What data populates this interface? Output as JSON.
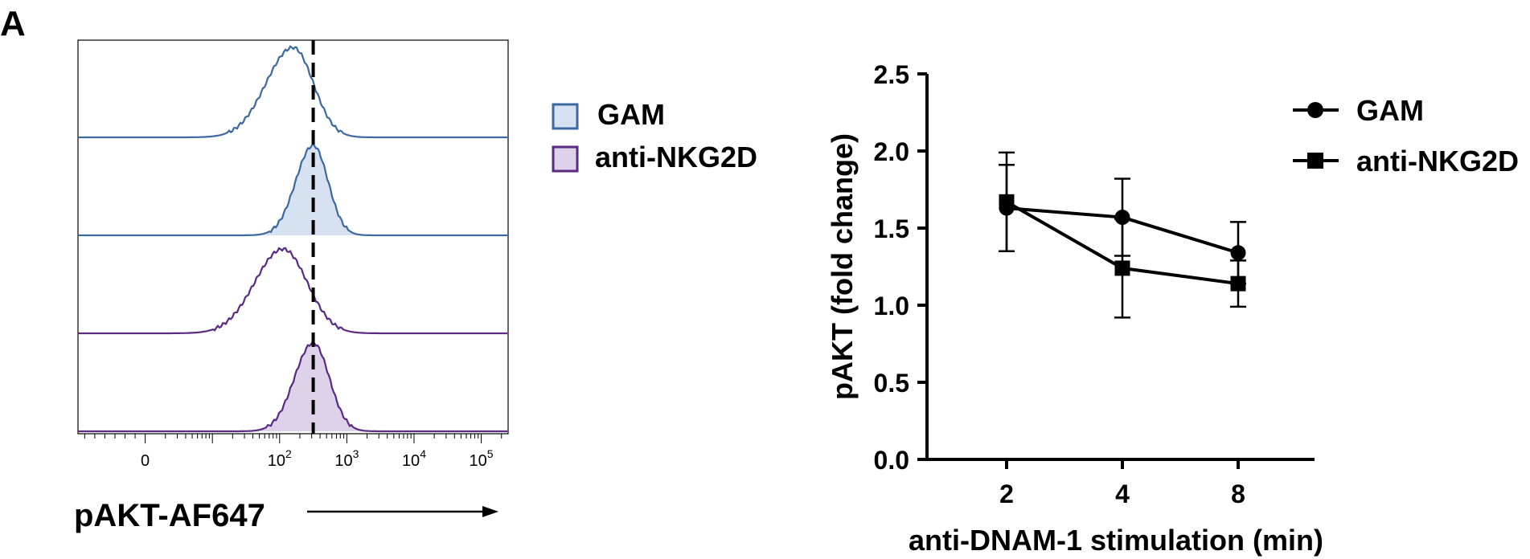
{
  "panel": {
    "label": "A"
  },
  "histogram": {
    "x_label": "pAKT-AF647",
    "x_ticks": [
      {
        "base": "0",
        "exp": "",
        "decade": 0
      },
      {
        "base": "10",
        "exp": "2",
        "decade": 2
      },
      {
        "base": "10",
        "exp": "3",
        "decade": 3
      },
      {
        "base": "10",
        "exp": "4",
        "decade": 4
      },
      {
        "base": "10",
        "exp": "5",
        "decade": 5
      }
    ],
    "x_range": [
      -1,
      5.4
    ],
    "dashed_line_at": 2.5,
    "legend": [
      {
        "label": "GAM",
        "color": "#3d68a0",
        "fill": "#d6e2f2"
      },
      {
        "label": "anti-NKG2D",
        "color": "#5a2a83",
        "fill": "#ddd2ea"
      }
    ]
  },
  "chart_data": {
    "type": "line",
    "x": [
      "2",
      "4",
      "8"
    ],
    "xlabel": "anti-DNAM-1 stimulation (min)",
    "ylabel": "pAKT (fold change)",
    "ylim": [
      0,
      2.5
    ],
    "yticks": [
      "0.0",
      "0.5",
      "1.0",
      "1.5",
      "2.0",
      "2.5"
    ],
    "legend_position": "top-right",
    "series": [
      {
        "name": "GAM",
        "marker": "circle",
        "values": [
          1.63,
          1.57,
          1.34
        ],
        "err": [
          0.28,
          0.25,
          0.2
        ]
      },
      {
        "name": "anti-NKG2D",
        "marker": "square",
        "values": [
          1.67,
          1.24,
          1.14
        ],
        "err": [
          0.32,
          0.32,
          0.15
        ]
      }
    ]
  }
}
